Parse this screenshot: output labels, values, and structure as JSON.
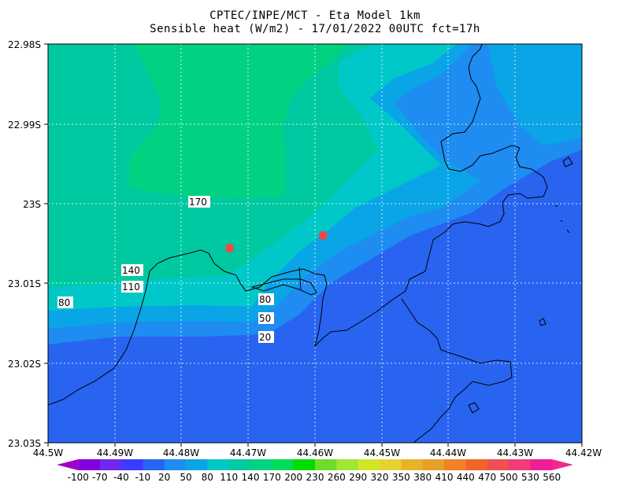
{
  "title": {
    "line1": "CPTEC/INPE/MCT -  Eta Model 1km",
    "line2": "Sensible heat (W/m2) - 17/01/2022 00UTC fct=17h"
  },
  "map": {
    "x_ticks": [
      "44.5W",
      "44.49W",
      "44.48W",
      "44.47W",
      "44.46W",
      "44.45W",
      "44.44W",
      "44.43W",
      "44.42W"
    ],
    "y_ticks": [
      "22.98S",
      "22.99S",
      "23S",
      "23.01S",
      "23.02S",
      "23.03S"
    ],
    "contour_labels": [
      "170",
      "140",
      "110",
      "80",
      "80",
      "50",
      "20"
    ],
    "markers": [
      {
        "lon": -44.4728,
        "lat": -23.0056,
        "color": "#f04848"
      },
      {
        "lon": -44.4588,
        "lat": -23.004,
        "color": "#f04848"
      }
    ],
    "grid": true
  },
  "colorbar": {
    "labels": [
      "-100",
      "-70",
      "-40",
      "-10",
      "20",
      "50",
      "80",
      "110",
      "140",
      "170",
      "200",
      "230",
      "260",
      "290",
      "320",
      "350",
      "380",
      "410",
      "440",
      "470",
      "500",
      "530",
      "560"
    ],
    "colors": [
      "#a000c8",
      "#8200dc",
      "#6e28f0",
      "#3c3cff",
      "#2864f0",
      "#1e8cf0",
      "#0aa5e6",
      "#00c8c8",
      "#00c8a0",
      "#00d282",
      "#00dc5a",
      "#00dc00",
      "#6edc28",
      "#a0e632",
      "#d2e628",
      "#e6d232",
      "#e6b428",
      "#e6a028",
      "#f08228",
      "#f06428",
      "#f05050",
      "#f03c78",
      "#f01e96",
      "#f0288c"
    ]
  }
}
